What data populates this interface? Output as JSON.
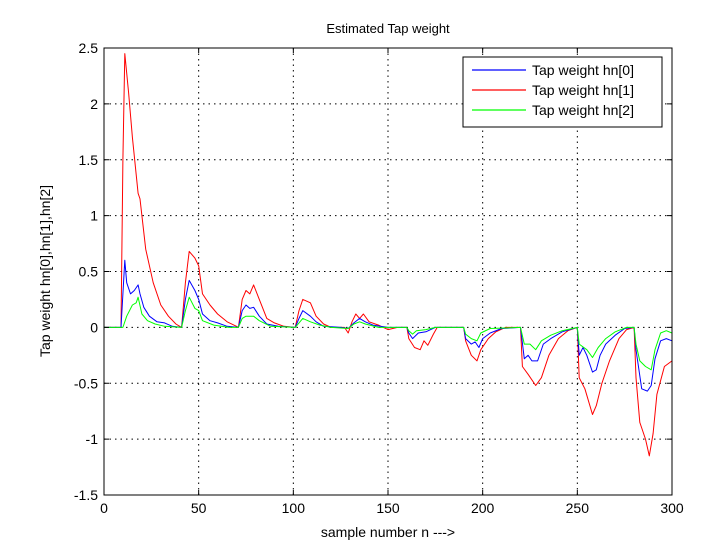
{
  "chart_data": {
    "type": "line",
    "title": "Estimated Tap weight",
    "xlabel": "sample number n --->",
    "ylabel": "Tap weight hn[0],hn[1],hn[2]",
    "xlim": [
      0,
      300
    ],
    "ylim": [
      -1.5,
      2.5
    ],
    "xticks": [
      0,
      50,
      100,
      150,
      200,
      250,
      300
    ],
    "xtick_labels": [
      "0",
      "50",
      "100",
      "150",
      "200",
      "250",
      "300"
    ],
    "yticks": [
      -1.5,
      -1,
      -0.5,
      0,
      0.5,
      1,
      1.5,
      2,
      2.5
    ],
    "ytick_labels": [
      "-1.5",
      "-1",
      "-0.5",
      "0",
      "0.5",
      "1",
      "1.5",
      "2",
      "2.5"
    ],
    "grid": true,
    "legend_position": "top-right",
    "series": [
      {
        "name": "Tap weight hn[0]",
        "color": "#0000ff",
        "points": [
          [
            0,
            0
          ],
          [
            9,
            0
          ],
          [
            10,
            0.3
          ],
          [
            11,
            0.6
          ],
          [
            12,
            0.4
          ],
          [
            14,
            0.3
          ],
          [
            16,
            0.33
          ],
          [
            18,
            0.38
          ],
          [
            19,
            0.3
          ],
          [
            21,
            0.18
          ],
          [
            24,
            0.1
          ],
          [
            28,
            0.05
          ],
          [
            32,
            0.04
          ],
          [
            36,
            0.01
          ],
          [
            41,
            0
          ],
          [
            43,
            0.25
          ],
          [
            45,
            0.42
          ],
          [
            48,
            0.33
          ],
          [
            50,
            0.25
          ],
          [
            52,
            0.12
          ],
          [
            56,
            0.06
          ],
          [
            60,
            0.04
          ],
          [
            65,
            0.01
          ],
          [
            71,
            0
          ],
          [
            73,
            0.15
          ],
          [
            75,
            0.2
          ],
          [
            77,
            0.17
          ],
          [
            79,
            0.18
          ],
          [
            82,
            0.1
          ],
          [
            86,
            0.03
          ],
          [
            92,
            0.01
          ],
          [
            101,
            0
          ],
          [
            103,
            0.08
          ],
          [
            105,
            0.15
          ],
          [
            109,
            0.1
          ],
          [
            112,
            0.05
          ],
          [
            116,
            0.01
          ],
          [
            125,
            0
          ],
          [
            129,
            -0.01
          ],
          [
            132,
            0.04
          ],
          [
            135,
            0.08
          ],
          [
            138,
            0.05
          ],
          [
            142,
            0.02
          ],
          [
            150,
            0
          ],
          [
            160,
            0
          ],
          [
            161,
            -0.05
          ],
          [
            163,
            -0.1
          ],
          [
            166,
            -0.05
          ],
          [
            170,
            -0.04
          ],
          [
            175,
            0
          ],
          [
            190,
            0
          ],
          [
            191,
            -0.1
          ],
          [
            194,
            -0.15
          ],
          [
            196,
            -0.13
          ],
          [
            198,
            -0.18
          ],
          [
            200,
            -0.1
          ],
          [
            204,
            -0.05
          ],
          [
            210,
            -0.01
          ],
          [
            220,
            0
          ],
          [
            222,
            -0.28
          ],
          [
            224,
            -0.25
          ],
          [
            226,
            -0.3
          ],
          [
            229,
            -0.3
          ],
          [
            232,
            -0.15
          ],
          [
            236,
            -0.1
          ],
          [
            242,
            -0.04
          ],
          [
            250,
            0
          ],
          [
            251,
            -0.25
          ],
          [
            253,
            -0.18
          ],
          [
            255,
            -0.25
          ],
          [
            258,
            -0.4
          ],
          [
            260,
            -0.38
          ],
          [
            262,
            -0.25
          ],
          [
            265,
            -0.15
          ],
          [
            270,
            -0.07
          ],
          [
            275,
            -0.01
          ],
          [
            280,
            0
          ],
          [
            281,
            -0.2
          ],
          [
            284,
            -0.55
          ],
          [
            287,
            -0.57
          ],
          [
            289,
            -0.52
          ],
          [
            291,
            -0.28
          ],
          [
            294,
            -0.12
          ],
          [
            297,
            -0.1
          ],
          [
            300,
            -0.12
          ]
        ]
      },
      {
        "name": "Tap weight hn[1]",
        "color": "#ff0000",
        "points": [
          [
            0,
            0
          ],
          [
            9,
            0
          ],
          [
            10,
            1.5
          ],
          [
            11,
            2.45
          ],
          [
            13,
            2.1
          ],
          [
            15,
            1.7
          ],
          [
            18,
            1.2
          ],
          [
            19,
            1.15
          ],
          [
            22,
            0.7
          ],
          [
            26,
            0.4
          ],
          [
            30,
            0.2
          ],
          [
            34,
            0.1
          ],
          [
            38,
            0.03
          ],
          [
            41,
            0
          ],
          [
            43,
            0.4
          ],
          [
            45,
            0.68
          ],
          [
            48,
            0.62
          ],
          [
            50,
            0.55
          ],
          [
            52,
            0.3
          ],
          [
            56,
            0.2
          ],
          [
            60,
            0.12
          ],
          [
            65,
            0.05
          ],
          [
            70,
            0.01
          ],
          [
            71,
            0
          ],
          [
            73,
            0.25
          ],
          [
            75,
            0.33
          ],
          [
            77,
            0.3
          ],
          [
            79,
            0.38
          ],
          [
            82,
            0.25
          ],
          [
            86,
            0.08
          ],
          [
            90,
            0.04
          ],
          [
            95,
            0.01
          ],
          [
            101,
            0
          ],
          [
            103,
            0.15
          ],
          [
            105,
            0.25
          ],
          [
            109,
            0.22
          ],
          [
            112,
            0.1
          ],
          [
            116,
            0.03
          ],
          [
            120,
            0
          ],
          [
            127,
            0
          ],
          [
            129,
            -0.05
          ],
          [
            131,
            0.05
          ],
          [
            133,
            0.12
          ],
          [
            135,
            0.08
          ],
          [
            137,
            0.12
          ],
          [
            140,
            0.05
          ],
          [
            145,
            0.02
          ],
          [
            150,
            -0.02
          ],
          [
            155,
            0
          ],
          [
            160,
            0
          ],
          [
            161,
            -0.1
          ],
          [
            164,
            -0.18
          ],
          [
            167,
            -0.2
          ],
          [
            169,
            -0.12
          ],
          [
            171,
            -0.16
          ],
          [
            174,
            -0.06
          ],
          [
            176,
            0
          ],
          [
            190,
            0
          ],
          [
            191,
            -0.12
          ],
          [
            194,
            -0.25
          ],
          [
            197,
            -0.3
          ],
          [
            199,
            -0.2
          ],
          [
            203,
            -0.1
          ],
          [
            207,
            -0.04
          ],
          [
            212,
            0
          ],
          [
            220,
            0
          ],
          [
            221,
            -0.35
          ],
          [
            224,
            -0.42
          ],
          [
            228,
            -0.52
          ],
          [
            231,
            -0.45
          ],
          [
            235,
            -0.25
          ],
          [
            240,
            -0.1
          ],
          [
            245,
            -0.03
          ],
          [
            250,
            0
          ],
          [
            251,
            -0.45
          ],
          [
            254,
            -0.55
          ],
          [
            258,
            -0.78
          ],
          [
            260,
            -0.7
          ],
          [
            263,
            -0.5
          ],
          [
            267,
            -0.3
          ],
          [
            272,
            -0.1
          ],
          [
            276,
            -0.02
          ],
          [
            280,
            0
          ],
          [
            281,
            -0.45
          ],
          [
            283,
            -0.85
          ],
          [
            286,
            -1.0
          ],
          [
            288,
            -1.15
          ],
          [
            290,
            -0.95
          ],
          [
            292,
            -0.6
          ],
          [
            296,
            -0.35
          ],
          [
            300,
            -0.3
          ]
        ]
      },
      {
        "name": "Tap weight hn[2]",
        "color": "#00ff00",
        "points": [
          [
            0,
            0
          ],
          [
            10,
            0
          ],
          [
            12,
            0.1
          ],
          [
            15,
            0.2
          ],
          [
            17,
            0.22
          ],
          [
            18,
            0.27
          ],
          [
            20,
            0.12
          ],
          [
            23,
            0.06
          ],
          [
            27,
            0.03
          ],
          [
            32,
            0.01
          ],
          [
            41,
            0
          ],
          [
            43,
            0.15
          ],
          [
            45,
            0.27
          ],
          [
            48,
            0.17
          ],
          [
            50,
            0.15
          ],
          [
            52,
            0.06
          ],
          [
            58,
            0.02
          ],
          [
            66,
            0
          ],
          [
            71,
            0
          ],
          [
            73,
            0.08
          ],
          [
            75,
            0.1
          ],
          [
            79,
            0.1
          ],
          [
            82,
            0.06
          ],
          [
            88,
            0.01
          ],
          [
            101,
            0
          ],
          [
            103,
            0.04
          ],
          [
            105,
            0.08
          ],
          [
            109,
            0.05
          ],
          [
            114,
            0.02
          ],
          [
            120,
            0
          ],
          [
            129,
            -0.01
          ],
          [
            132,
            0.03
          ],
          [
            135,
            0.05
          ],
          [
            138,
            0.03
          ],
          [
            145,
            0
          ],
          [
            160,
            0
          ],
          [
            161,
            -0.03
          ],
          [
            163,
            -0.06
          ],
          [
            165,
            -0.03
          ],
          [
            170,
            -0.02
          ],
          [
            175,
            0
          ],
          [
            190,
            0
          ],
          [
            191,
            -0.06
          ],
          [
            194,
            -0.1
          ],
          [
            197,
            -0.12
          ],
          [
            199,
            -0.05
          ],
          [
            204,
            -0.01
          ],
          [
            220,
            0
          ],
          [
            222,
            -0.15
          ],
          [
            225,
            -0.15
          ],
          [
            228,
            -0.2
          ],
          [
            231,
            -0.12
          ],
          [
            236,
            -0.07
          ],
          [
            242,
            -0.03
          ],
          [
            250,
            0
          ],
          [
            251,
            -0.15
          ],
          [
            255,
            -0.2
          ],
          [
            258,
            -0.27
          ],
          [
            261,
            -0.18
          ],
          [
            265,
            -0.1
          ],
          [
            270,
            -0.04
          ],
          [
            276,
            0
          ],
          [
            280,
            0
          ],
          [
            281,
            -0.15
          ],
          [
            283,
            -0.3
          ],
          [
            286,
            -0.35
          ],
          [
            289,
            -0.38
          ],
          [
            291,
            -0.2
          ],
          [
            294,
            -0.05
          ],
          [
            297,
            -0.03
          ],
          [
            300,
            -0.05
          ]
        ]
      }
    ]
  }
}
